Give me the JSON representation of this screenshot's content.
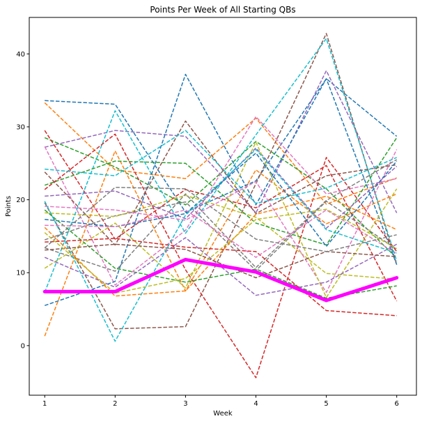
{
  "chart_data": {
    "type": "line",
    "title": "Points Per Week of All Starting QBs",
    "xlabel": "Week",
    "ylabel": "Points",
    "x": [
      1,
      2,
      3,
      4,
      5,
      6
    ],
    "xlim": [
      0.78,
      6.28
    ],
    "ylim": [
      -6.8,
      45.0
    ],
    "xticks": [
      1,
      2,
      3,
      4,
      5,
      6
    ],
    "yticks": [
      0,
      10,
      20,
      30,
      40
    ],
    "grid": false,
    "legend": "none",
    "series": [
      {
        "color": "#1f77b4",
        "style": "dashed",
        "values": [
          33.6,
          33.1,
          18.3,
          22.6,
          36.6,
          28.7
        ]
      },
      {
        "color": "#ff7f0e",
        "style": "dashed",
        "values": [
          33.3,
          24.1,
          22.9,
          31.2,
          19.4,
          23.0
        ]
      },
      {
        "color": "#2ca02c",
        "style": "dashed",
        "values": [
          28.5,
          24.5,
          19.3,
          28.0,
          21.5,
          12.0
        ]
      },
      {
        "color": "#d62728",
        "style": "dashed",
        "values": [
          29.5,
          14.6,
          21.4,
          18.9,
          24.7,
          6.1
        ]
      },
      {
        "color": "#9467bd",
        "style": "dashed",
        "values": [
          27.2,
          29.5,
          28.7,
          18.2,
          37.7,
          18.2
        ]
      },
      {
        "color": "#8c564b",
        "style": "dashed",
        "values": [
          19.6,
          2.3,
          2.6,
          22.2,
          42.8,
          11.1
        ]
      },
      {
        "color": "#e377c2",
        "style": "dashed",
        "values": [
          27.3,
          8.3,
          15.8,
          31.4,
          20.8,
          22.9
        ]
      },
      {
        "color": "#7f7f7f",
        "style": "dashed",
        "values": [
          14.5,
          17.8,
          19.7,
          10.3,
          19.8,
          13.2
        ]
      },
      {
        "color": "#bcbd22",
        "style": "dashed",
        "values": [
          18.2,
          17.7,
          20.6,
          17.6,
          9.9,
          9.1
        ]
      },
      {
        "color": "#17becf",
        "style": "dashed",
        "values": [
          7.3,
          32.2,
          15.4,
          28.9,
          42.1,
          11.6
        ]
      },
      {
        "color": "#1f77b4",
        "style": "dashed",
        "values": [
          5.5,
          8.8,
          37.2,
          19.3,
          36.6,
          11.1
        ]
      },
      {
        "color": "#ff7f0e",
        "style": "dashed",
        "values": [
          1.3,
          26.7,
          7.5,
          24.1,
          16.7,
          20.8
        ]
      },
      {
        "color": "#2ca02c",
        "style": "dashed",
        "values": [
          22.0,
          25.3,
          25.0,
          16.8,
          13.8,
          28.5
        ]
      },
      {
        "color": "#d62728",
        "style": "dashed",
        "values": [
          21.4,
          29.0,
          10.4,
          -4.4,
          25.8,
          12.9
        ]
      },
      {
        "color": "#9467bd",
        "style": "dashed",
        "values": [
          20.5,
          21.2,
          17.4,
          27.1,
          16.1,
          24.6
        ]
      },
      {
        "color": "#8c564b",
        "style": "dashed",
        "values": [
          23.8,
          13.8,
          30.8,
          18.1,
          23.3,
          24.8
        ]
      },
      {
        "color": "#e377c2",
        "style": "dashed",
        "values": [
          19.1,
          18.6,
          17.2,
          22.5,
          7.3,
          26.9
        ]
      },
      {
        "color": "#7f7f7f",
        "style": "dashed",
        "values": [
          13.4,
          10.2,
          20.8,
          10.7,
          19.9,
          25.5
        ]
      },
      {
        "color": "#bcbd22",
        "style": "dashed",
        "values": [
          10.6,
          16.8,
          7.9,
          27.9,
          6.6,
          21.5
        ]
      },
      {
        "color": "#17becf",
        "style": "dashed",
        "values": [
          24.2,
          23.3,
          29.5,
          19.5,
          21.6,
          25.8
        ]
      },
      {
        "color": "#1f77b4",
        "style": "dashed",
        "values": [
          17.3,
          16.3,
          18.1,
          26.4,
          13.6,
          25.3
        ]
      },
      {
        "color": "#ff7f0e",
        "style": "dashed",
        "values": [
          16.2,
          6.8,
          7.5,
          18.0,
          20.5,
          15.9
        ]
      },
      {
        "color": "#2ca02c",
        "style": "dashed",
        "values": [
          18.6,
          10.6,
          8.7,
          10.5,
          6.5,
          8.2
        ]
      },
      {
        "color": "#d62728",
        "style": "dashed",
        "values": [
          14.2,
          14.7,
          13.5,
          12.9,
          4.8,
          4.1
        ]
      },
      {
        "color": "#9467bd",
        "style": "dashed",
        "values": [
          12.1,
          8.0,
          14.8,
          6.9,
          8.7,
          13.9
        ]
      },
      {
        "color": "#8c564b",
        "style": "dashed",
        "values": [
          13.1,
          13.9,
          13.2,
          9.3,
          12.9,
          12.2
        ]
      },
      {
        "color": "#e377c2",
        "style": "dashed",
        "values": [
          16.5,
          16.3,
          18.6,
          12.1,
          18.6,
          12.6
        ]
      },
      {
        "color": "#7f7f7f",
        "style": "dashed",
        "values": [
          13.4,
          21.7,
          21.5,
          14.6,
          12.9,
          15.2
        ]
      },
      {
        "color": "#bcbd22",
        "style": "dashed",
        "values": [
          15.5,
          7.2,
          9.2,
          17.3,
          18.7,
          13.3
        ]
      },
      {
        "color": "#17becf",
        "style": "dashed",
        "values": [
          19.8,
          0.6,
          17.9,
          26.9,
          15.9,
          12.7
        ]
      },
      {
        "color": "#ff00ff",
        "style": "solid",
        "highlight": true,
        "values": [
          7.4,
          7.4,
          11.8,
          10.1,
          6.2,
          9.3
        ]
      }
    ]
  }
}
